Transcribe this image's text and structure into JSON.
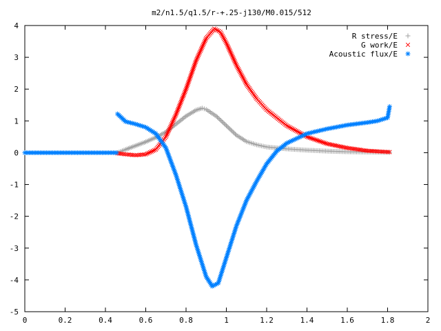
{
  "chart_data": {
    "type": "scatter",
    "title": "m2/n1.5/q1.5/r-+.25-j130/M0.015/512",
    "xlabel": "",
    "ylabel": "",
    "xlim": [
      0,
      2
    ],
    "ylim": [
      -5,
      4
    ],
    "x_ticks": [
      "0",
      "0.2",
      "0.4",
      "0.6",
      "0.8",
      "1",
      "1.2",
      "1.4",
      "1.6",
      "1.8",
      "2"
    ],
    "y_ticks": [
      "-5",
      "-4",
      "-3",
      "-2",
      "-1",
      "0",
      "1",
      "2",
      "3",
      "4"
    ],
    "grid": false,
    "legend_position": "top-right",
    "series": [
      {
        "name": "R stress/E",
        "color": "#a0a0a0",
        "marker": "plus",
        "points": [
          [
            0.46,
            0.0
          ],
          [
            0.5,
            0.1
          ],
          [
            0.55,
            0.22
          ],
          [
            0.6,
            0.34
          ],
          [
            0.65,
            0.48
          ],
          [
            0.7,
            0.65
          ],
          [
            0.75,
            0.9
          ],
          [
            0.8,
            1.15
          ],
          [
            0.85,
            1.34
          ],
          [
            0.88,
            1.4
          ],
          [
            0.9,
            1.36
          ],
          [
            0.95,
            1.15
          ],
          [
            1.0,
            0.85
          ],
          [
            1.05,
            0.55
          ],
          [
            1.1,
            0.35
          ],
          [
            1.15,
            0.25
          ],
          [
            1.2,
            0.18
          ],
          [
            1.3,
            0.12
          ],
          [
            1.4,
            0.08
          ],
          [
            1.5,
            0.05
          ],
          [
            1.6,
            0.03
          ],
          [
            1.7,
            0.02
          ],
          [
            1.81,
            0.01
          ]
        ]
      },
      {
        "name": "G work/E",
        "color": "#ff0000",
        "marker": "cross",
        "points": [
          [
            0.46,
            -0.02
          ],
          [
            0.5,
            -0.05
          ],
          [
            0.55,
            -0.08
          ],
          [
            0.6,
            -0.05
          ],
          [
            0.65,
            0.1
          ],
          [
            0.7,
            0.5
          ],
          [
            0.75,
            1.2
          ],
          [
            0.8,
            2.0
          ],
          [
            0.85,
            2.9
          ],
          [
            0.9,
            3.6
          ],
          [
            0.94,
            3.9
          ],
          [
            0.97,
            3.8
          ],
          [
            1.0,
            3.45
          ],
          [
            1.05,
            2.75
          ],
          [
            1.1,
            2.15
          ],
          [
            1.15,
            1.7
          ],
          [
            1.2,
            1.35
          ],
          [
            1.3,
            0.85
          ],
          [
            1.4,
            0.5
          ],
          [
            1.5,
            0.28
          ],
          [
            1.6,
            0.15
          ],
          [
            1.7,
            0.06
          ],
          [
            1.81,
            0.02
          ]
        ]
      },
      {
        "name": "Acoustic flux/E",
        "color": "#0080ff",
        "marker": "star",
        "points": [
          [
            0.0,
            0.0
          ],
          [
            0.1,
            0.0
          ],
          [
            0.2,
            0.0
          ],
          [
            0.3,
            0.0
          ],
          [
            0.4,
            0.0
          ],
          [
            0.455,
            0.0
          ],
          [
            0.46,
            1.22
          ],
          [
            0.5,
            0.98
          ],
          [
            0.55,
            0.9
          ],
          [
            0.6,
            0.8
          ],
          [
            0.65,
            0.6
          ],
          [
            0.7,
            0.15
          ],
          [
            0.75,
            -0.7
          ],
          [
            0.8,
            -1.7
          ],
          [
            0.85,
            -2.9
          ],
          [
            0.9,
            -3.9
          ],
          [
            0.93,
            -4.2
          ],
          [
            0.96,
            -4.1
          ],
          [
            1.0,
            -3.3
          ],
          [
            1.05,
            -2.3
          ],
          [
            1.1,
            -1.5
          ],
          [
            1.15,
            -0.9
          ],
          [
            1.2,
            -0.35
          ],
          [
            1.25,
            0.05
          ],
          [
            1.3,
            0.3
          ],
          [
            1.4,
            0.6
          ],
          [
            1.5,
            0.75
          ],
          [
            1.6,
            0.87
          ],
          [
            1.7,
            0.95
          ],
          [
            1.75,
            1.0
          ],
          [
            1.8,
            1.1
          ],
          [
            1.81,
            1.45
          ]
        ]
      }
    ]
  }
}
